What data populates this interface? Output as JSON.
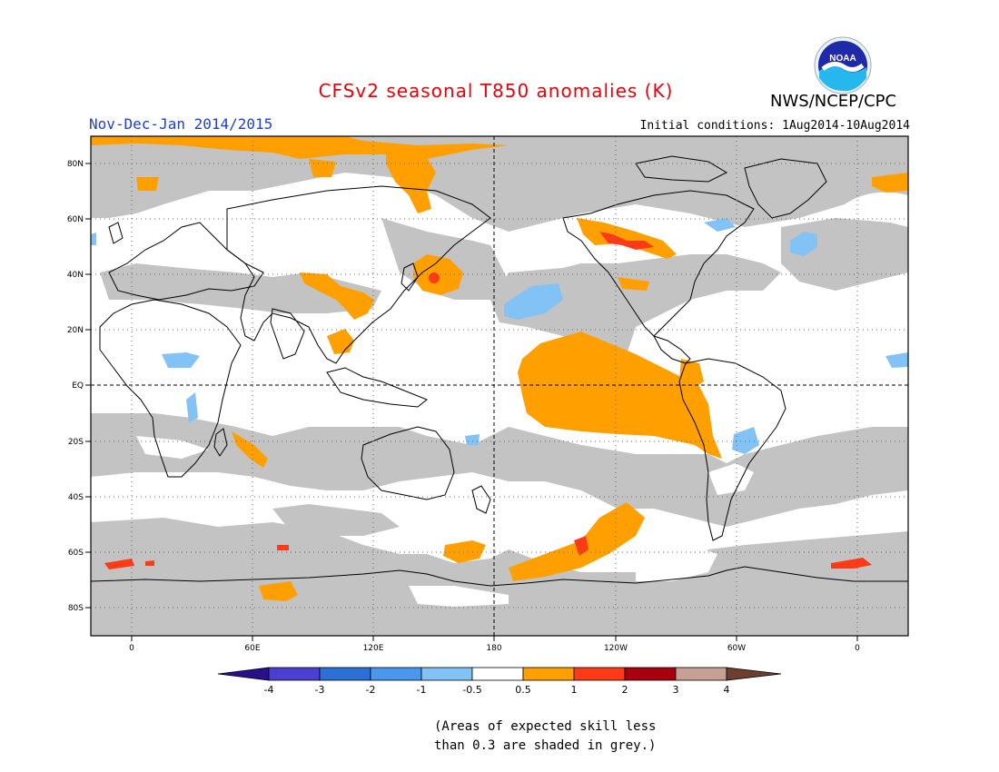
{
  "title": "CFSv2 seasonal T850 anomalies (K)",
  "organization": "NWS/NCEP/CPC",
  "logo_text": "NOAA",
  "period": "Nov-Dec-Jan 2014/2015",
  "initial_conditions": "Initial conditions: 1Aug2014-10Aug2014",
  "lat_labels": [
    "80N",
    "60N",
    "40N",
    "20N",
    "EQ",
    "20S",
    "40S",
    "60S",
    "80S"
  ],
  "lon_labels": [
    "0",
    "60E",
    "120E",
    "180",
    "120W",
    "60W",
    "0"
  ],
  "colorbar": {
    "labels": [
      "-4",
      "-3",
      "-2",
      "-1",
      "-0.5",
      "0.5",
      "1",
      "2",
      "3",
      "4"
    ],
    "colors": [
      "#2a0f8a",
      "#4a3fd1",
      "#2c6fd6",
      "#4a98ee",
      "#82c2f5",
      "#ffffff",
      "#ffa000",
      "#ff3a16",
      "#a8000c",
      "#c6a092",
      "#6b4030"
    ]
  },
  "skill_note": [
    "(Areas of expected skill less",
    "than 0.3 are shaded in grey.)"
  ],
  "map_colors": {
    "grey": "#c3c3c3",
    "orange": "#ffa000",
    "red": "#ff3a16",
    "light_blue": "#82c2f5",
    "blue": "#4a98ee"
  }
}
